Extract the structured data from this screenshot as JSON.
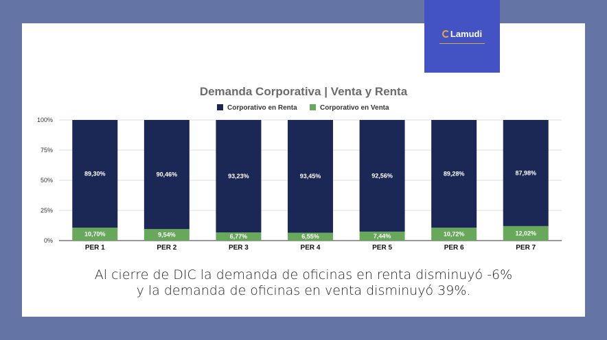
{
  "brand": {
    "logo_text": "Lamudi"
  },
  "caption": {
    "line1": "Al cierre de DIC la demanda de oficinas en renta disminuyó -6%",
    "line2": "y la demanda de oficinas en venta disminuyó 39%."
  },
  "colors": {
    "renta": "#1b2754",
    "venta": "#68a85a",
    "background": "#6474a4",
    "brand": "#4453c4"
  },
  "chart_data": {
    "type": "bar",
    "stacked": true,
    "title": "Demanda Corporativa | Venta y Renta",
    "categories": [
      "PER 1",
      "PER 2",
      "PER 3",
      "PER 4",
      "PER 5",
      "PER 6",
      "PER 7"
    ],
    "series": [
      {
        "name": "Corporativo en Renta",
        "values": [
          89.3,
          90.46,
          93.23,
          93.45,
          92.56,
          89.28,
          87.98
        ],
        "labels": [
          "89,30%",
          "90,46%",
          "93,23%",
          "93,45%",
          "92,56%",
          "89,28%",
          "87,98%"
        ]
      },
      {
        "name": "Corporativo en Venta",
        "values": [
          10.7,
          9.54,
          6.77,
          6.55,
          7.44,
          10.72,
          12.02
        ],
        "labels": [
          "10,70%",
          "9,54%",
          "6,77%",
          "6,55%",
          "7,44%",
          "10,72%",
          "12,02%"
        ]
      }
    ],
    "yticks": [
      "0%",
      "25%",
      "50%",
      "75%",
      "100%"
    ],
    "ylim": [
      0,
      100
    ],
    "legend": "top",
    "grid": true
  }
}
